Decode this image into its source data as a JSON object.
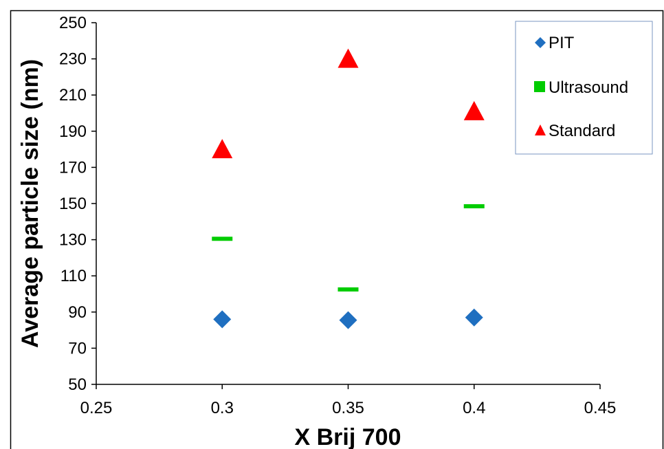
{
  "chart_data": {
    "type": "scatter",
    "title": "",
    "xlabel": "X Brij 700",
    "ylabel": "Average particle size (nm)",
    "xlim": [
      0.25,
      0.45
    ],
    "ylim": [
      50,
      250
    ],
    "x_ticks": [
      0.25,
      0.3,
      0.35,
      0.4,
      0.45
    ],
    "x_tick_labels": [
      "0.25",
      "0.3",
      "0.35",
      "0.4",
      "0.45"
    ],
    "y_ticks": [
      50,
      70,
      90,
      110,
      130,
      150,
      170,
      190,
      210,
      230,
      250
    ],
    "y_tick_labels": [
      "50",
      "70",
      "90",
      "110",
      "130",
      "150",
      "170",
      "190",
      "210",
      "230",
      "250"
    ],
    "grid": false,
    "legend_position": "top-right",
    "series": [
      {
        "name": "PIT",
        "marker": "diamond",
        "color": "#1F6FC0",
        "points": [
          {
            "x": 0.3,
            "y": 86
          },
          {
            "x": 0.35,
            "y": 85.5
          },
          {
            "x": 0.4,
            "y": 87
          }
        ]
      },
      {
        "name": "Ultrasound",
        "marker": "dash",
        "color": "#00CC00",
        "points": [
          {
            "x": 0.3,
            "y": 130.5
          },
          {
            "x": 0.35,
            "y": 102.5
          },
          {
            "x": 0.4,
            "y": 148.5
          }
        ]
      },
      {
        "name": "Standard",
        "marker": "triangle",
        "color": "#FF0000",
        "points": [
          {
            "x": 0.3,
            "y": 180
          },
          {
            "x": 0.35,
            "y": 230
          },
          {
            "x": 0.4,
            "y": 201
          }
        ]
      }
    ]
  }
}
